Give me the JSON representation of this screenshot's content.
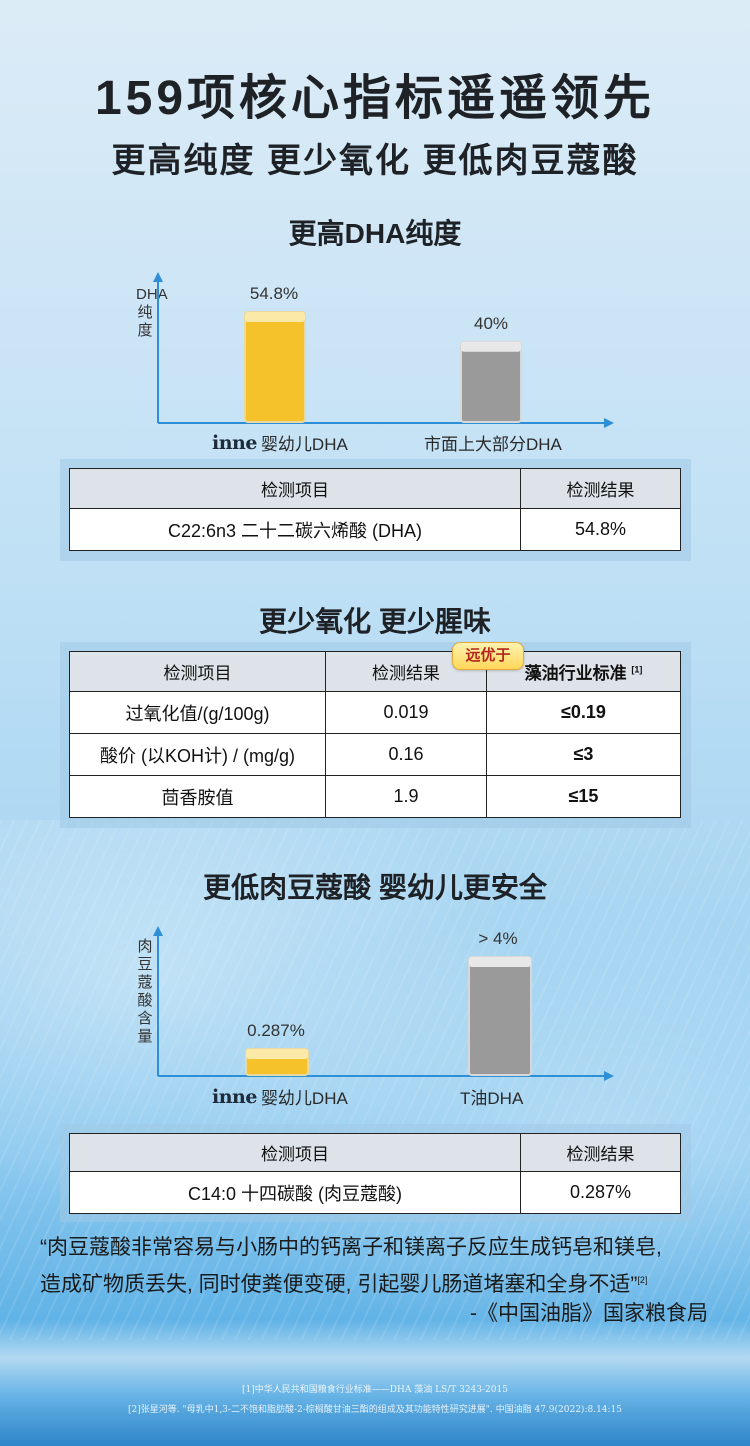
{
  "header": {
    "title": "159项核心指标遥遥领先",
    "subtitle": "更高纯度 更少氧化 更低肉豆蔻酸"
  },
  "section1": {
    "title": "更高DHA纯度",
    "ylabel": "DHA纯度",
    "brand": "inne",
    "chart_data": {
      "type": "bar",
      "categories": [
        "婴幼儿DHA",
        "市面上大部分DHA"
      ],
      "values": [
        54.8,
        40
      ],
      "value_labels": [
        "54.8%",
        "40%"
      ],
      "ylabel": "DHA纯度",
      "colors": [
        "#f6c22b",
        "#9a9a9a"
      ]
    },
    "table": {
      "headers": [
        "检测项目",
        "检测结果"
      ],
      "rows": [
        [
          "C22:6n3 二十二碳六烯酸 (DHA)",
          "54.8%"
        ]
      ]
    }
  },
  "section2": {
    "title": "更少氧化 更少腥味",
    "badge": "远优于",
    "ref": "[1]",
    "table": {
      "headers": [
        "检测项目",
        "检测结果",
        "藻油行业标准"
      ],
      "rows": [
        [
          "过氧化值/(g/100g)",
          "0.019",
          "≤0.19"
        ],
        [
          "酸价 (以KOH计) / (mg/g)",
          "0.16",
          "≤3"
        ],
        [
          "茴香胺值",
          "1.9",
          "≤15"
        ]
      ]
    }
  },
  "section3": {
    "title": "更低肉豆蔻酸 婴幼儿更安全",
    "ylabel": "肉豆蔻酸含量",
    "brand": "inne",
    "chart_data": {
      "type": "bar",
      "categories": [
        "婴幼儿DHA",
        "T油DHA"
      ],
      "values": [
        0.287,
        4
      ],
      "value_labels": [
        "0.287%",
        "> 4%"
      ],
      "ylabel": "肉豆蔻酸含量",
      "colors": [
        "#f6c22b",
        "#9a9a9a"
      ]
    },
    "table": {
      "headers": [
        "检测项目",
        "检测结果"
      ],
      "rows": [
        [
          "C14:0 十四碳酸 (肉豆蔻酸)",
          "0.287%"
        ]
      ]
    }
  },
  "quote": {
    "line1": "“肉豆蔻酸非常容易与小肠中的钙离子和镁离子反应生成钙皂和镁皂,",
    "line2": "造成矿物质丢失, 同时使粪便变硬, 引起婴儿肠道堵塞和全身不适”",
    "ref": "[2]",
    "source": "-《中国油脂》国家粮食局"
  },
  "footnotes": {
    "note1": "[1]中华人民共和国粮食行业标准——DHA 藻油 LS/T 3243-2015",
    "note2": "[2]张星河等. \"母乳中1,3-二不饱和脂肪酸-2-棕榈酸甘油三酯的组成及其功能特性研究进展\". 中国油脂 47.9(2022):8.14:15"
  }
}
